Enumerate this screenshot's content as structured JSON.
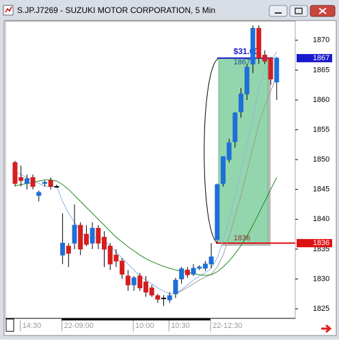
{
  "chart_data": {
    "type": "candlestick",
    "title": "S.JP.J7269 - SUZUKI MOTOR CORPORATION, 5 Min",
    "categories": [
      null,
      "14:30",
      null,
      null,
      null,
      null,
      null,
      null,
      "22-09:00",
      null,
      null,
      null,
      null,
      null,
      null,
      null,
      null,
      null,
      null,
      null,
      "10:00",
      null,
      null,
      null,
      null,
      null,
      "10:30",
      null,
      null,
      null,
      null,
      null,
      null,
      "22-12:30",
      null,
      null,
      null,
      null,
      null,
      null,
      null,
      null,
      null,
      null,
      null
    ],
    "open": [
      1849.5,
      1847,
      1846,
      1847,
      1844,
      1846,
      1846.5,
      1845.5,
      1834,
      1835.5,
      1836,
      1839,
      1837.5,
      1836,
      1838.5,
      1837,
      1835.5,
      1834,
      1833,
      1830.5,
      1829,
      1830.5,
      1829.5,
      1828.5,
      1827.2,
      1826.8,
      1826.5,
      1827.5,
      1830,
      1831.5,
      1830.8,
      1831.8,
      1831.8,
      1832.5,
      1836.6,
      1846,
      1850,
      1853,
      1858,
      1861,
      1866,
      1872,
      1867.5,
      1867,
      1863
    ],
    "high": [
      1849.8,
      1849,
      1847.5,
      1847.5,
      1844.8,
      1846.5,
      1847,
      1845.8,
      1841,
      1836,
      1842.5,
      1839.5,
      1839,
      1839.5,
      1839,
      1838,
      1836,
      1835,
      1833.5,
      1831.5,
      1830.5,
      1831,
      1830.5,
      1829,
      1827.5,
      1827.3,
      1827.8,
      1830.2,
      1832,
      1832,
      1832.5,
      1832.3,
      1833,
      1836,
      1846,
      1850.5,
      1853.5,
      1858,
      1862,
      1866,
      1872.5,
      1872.5,
      1868.3,
      1867.2,
      1867.2
    ],
    "low": [
      1845.5,
      1845.5,
      1845,
      1845,
      1843,
      1845.5,
      1845,
      1845.3,
      1832.5,
      1832,
      1835,
      1834,
      1835.5,
      1835,
      1835,
      1832,
      1831.5,
      1832,
      1830,
      1828,
      1828,
      1828,
      1827,
      1827,
      1826,
      1825.5,
      1826,
      1826.8,
      1829.2,
      1830.2,
      1830.5,
      1831.5,
      1831.3,
      1831.8,
      1836,
      1845.5,
      1849.5,
      1852,
      1857,
      1860,
      1864.5,
      1866,
      1866,
      1862.5,
      1860
    ],
    "close": [
      1846,
      1846.5,
      1846.8,
      1845.5,
      1844.5,
      1846.2,
      1845.5,
      1845.5,
      1836,
      1834.3,
      1839,
      1835,
      1835.8,
      1838.5,
      1836,
      1835,
      1832.5,
      1833,
      1830.8,
      1829,
      1830.2,
      1828.5,
      1827.8,
      1827.3,
      1826.6,
      1826.8,
      1827.2,
      1829.8,
      1831.7,
      1830.7,
      1831.8,
      1832,
      1832.5,
      1833.7,
      1845.8,
      1850.5,
      1852.8,
      1857.8,
      1861,
      1865.5,
      1872,
      1867,
      1866.5,
      1863.5,
      1867
    ],
    "up_color": "#1e6fd9",
    "down_color": "#d41f1f",
    "lines": [
      {
        "color": "#8fb4e8",
        "values": [
          1848,
          1847.5,
          1847,
          1846.5,
          1846,
          1845.5,
          1845.5,
          1845.5,
          1843,
          1841,
          1839.5,
          1838,
          1837,
          1837,
          1836.8,
          1836.5,
          1835.5,
          1834.5,
          1833.5,
          1832.5,
          1831.5,
          1830.5,
          1829.8,
          1829.2,
          1828.5,
          1828,
          1827.5,
          1827.6,
          1828.2,
          1829,
          1829.8,
          1830.5,
          1831,
          1831.8,
          1833.5,
          1836.5,
          1840,
          1844,
          1848,
          1852.5,
          1857,
          1862,
          1865,
          1866.5,
          1868
        ]
      },
      {
        "color": "#9a9a9a",
        "values": [
          null,
          null,
          null,
          null,
          null,
          null,
          null,
          null,
          null,
          null,
          null,
          null,
          null,
          null,
          null,
          null,
          null,
          null,
          null,
          null,
          null,
          null,
          null,
          null,
          null,
          null,
          null,
          1827.5,
          1828,
          1828.6,
          1829.2,
          1829.8,
          1830.3,
          1830.8,
          1832,
          1834,
          1837,
          1840.5,
          1844,
          1848,
          1852,
          1856,
          1859,
          1861.5,
          1864
        ]
      },
      {
        "color": "#1a8a1a",
        "values": [
          1845.6,
          1845.8,
          1846,
          1846.2,
          1846.4,
          1846.6,
          1846.6,
          1846.4,
          1845.8,
          1845,
          1844,
          1843,
          1842,
          1841,
          1840,
          1839,
          1838,
          1837,
          1836.2,
          1835.4,
          1834.7,
          1834,
          1833.4,
          1832.9,
          1832.5,
          1832.1,
          1831.8,
          1831.5,
          1831.3,
          1831.1,
          1830.9,
          1830.7,
          1830.6,
          1830.7,
          1831.2,
          1832,
          1833,
          1834.2,
          1835.6,
          1837.2,
          1839,
          1841,
          1843,
          1845,
          1847
        ]
      }
    ],
    "ylim": [
      1823.4,
      1873.3
    ],
    "yticks": [
      1825,
      1830,
      1835,
      1840,
      1845,
      1850,
      1855,
      1860,
      1865,
      1870
    ],
    "target": 1867,
    "entry": 1836,
    "profit_label": "$31.00",
    "target_color": "#1a1acc",
    "entry_color": "#dd1111"
  }
}
